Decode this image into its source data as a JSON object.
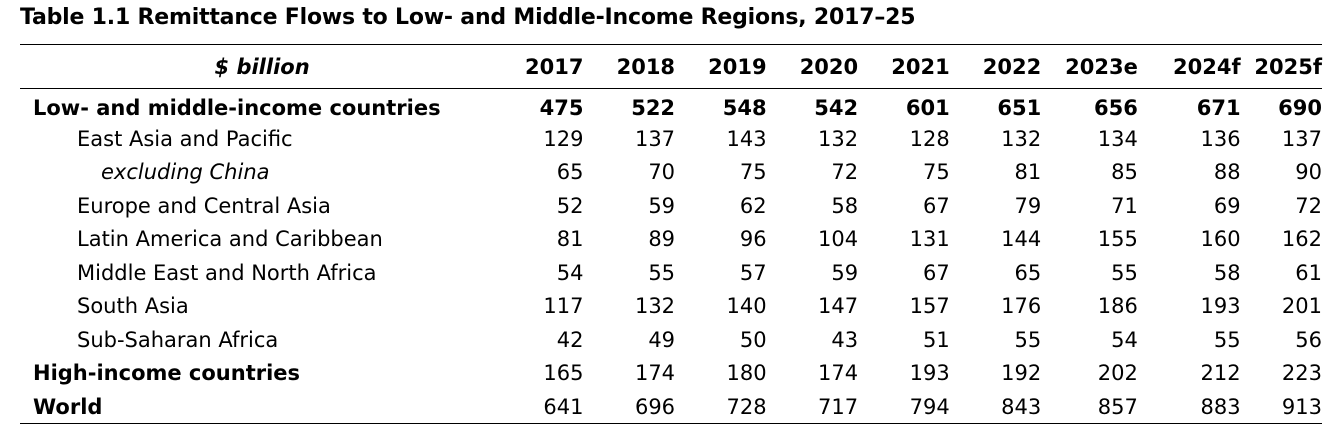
{
  "title": "Table 1.1 Remittance Flows to Low- and Middle-Income Regions, 2017–25",
  "header": {
    "unit": "$ billion",
    "years": [
      "2017",
      "2018",
      "2019",
      "2020",
      "2021",
      "2022",
      "2023e",
      "2024f",
      "2025f"
    ]
  },
  "rows": [
    {
      "label": "Low- and middle-income countries",
      "level": 0,
      "bold": true,
      "values": [
        "475",
        "522",
        "548",
        "542",
        "601",
        "651",
        "656",
        "671",
        "690"
      ]
    },
    {
      "label": "East Asia and Pacific",
      "level": 1,
      "bold": false,
      "values": [
        "129",
        "137",
        "143",
        "132",
        "128",
        "132",
        "134",
        "136",
        "137"
      ]
    },
    {
      "label": "excluding China",
      "level": 2,
      "bold": false,
      "values": [
        "65",
        "70",
        "75",
        "72",
        "75",
        "81",
        "85",
        "88",
        "90"
      ]
    },
    {
      "label": "Europe and Central Asia",
      "level": 1,
      "bold": false,
      "values": [
        "52",
        "59",
        "62",
        "58",
        "67",
        "79",
        "71",
        "69",
        "72"
      ]
    },
    {
      "label": "Latin America and Caribbean",
      "level": 1,
      "bold": false,
      "values": [
        "81",
        "89",
        "96",
        "104",
        "131",
        "144",
        "155",
        "160",
        "162"
      ]
    },
    {
      "label": "Middle East and North Africa",
      "level": 1,
      "bold": false,
      "values": [
        "54",
        "55",
        "57",
        "59",
        "67",
        "65",
        "55",
        "58",
        "61"
      ]
    },
    {
      "label": "South Asia",
      "level": 1,
      "bold": false,
      "values": [
        "117",
        "132",
        "140",
        "147",
        "157",
        "176",
        "186",
        "193",
        "201"
      ]
    },
    {
      "label": "Sub-Saharan Africa",
      "level": 1,
      "bold": false,
      "values": [
        "42",
        "49",
        "50",
        "43",
        "51",
        "55",
        "54",
        "55",
        "56"
      ]
    },
    {
      "label": "High-income countries",
      "level": 0,
      "bold": false,
      "values": [
        "165",
        "174",
        "180",
        "174",
        "193",
        "192",
        "202",
        "212",
        "223"
      ]
    },
    {
      "label": "World",
      "level": 0,
      "bold": false,
      "values": [
        "641",
        "696",
        "728",
        "717",
        "794",
        "843",
        "857",
        "883",
        "913"
      ]
    }
  ]
}
